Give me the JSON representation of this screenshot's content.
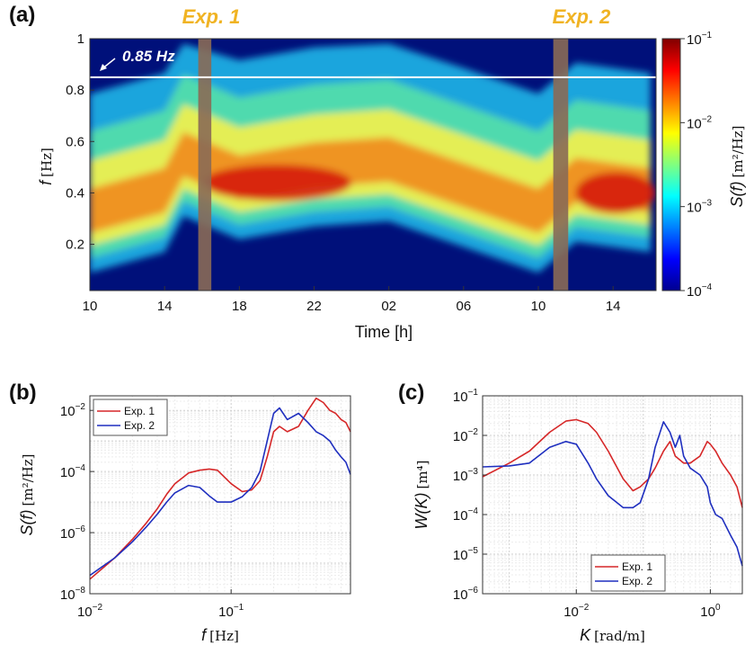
{
  "chart_data": [
    {
      "id": "a",
      "type": "heatmap",
      "panel_label": "(a)",
      "title": "",
      "xlabel": "Time [h]",
      "ylabel": "f [Hz]",
      "ylabel_var": "f",
      "ylabel_unit": "[Hz]",
      "xlim_hours": [
        10,
        40.3
      ],
      "ylim": [
        0.02,
        1.0
      ],
      "x_tick_hours": [
        10,
        14,
        18,
        22,
        26,
        30,
        34,
        38
      ],
      "x_tick_labels": [
        "10",
        "14",
        "18",
        "22",
        "02",
        "06",
        "10",
        "14"
      ],
      "y_ticks": [
        0.2,
        0.4,
        0.6,
        0.8,
        1.0
      ],
      "y_tick_labels": [
        "0.2",
        "0.4",
        "0.6",
        "0.8",
        "1"
      ],
      "colorbar": {
        "label": "S(f) [m²/Hz]",
        "label_var": "S(f)",
        "label_unit": "[m²/Hz]",
        "scale": "log",
        "range": [
          0.0001,
          0.1
        ],
        "tick_values": [
          0.1,
          0.01,
          0.001,
          0.0001
        ],
        "tick_base": [
          "10",
          "10",
          "10",
          "10"
        ],
        "tick_exp": [
          "−1",
          "−2",
          "−3",
          "−4"
        ]
      },
      "experiments": [
        {
          "label": "Exp. 1",
          "start_hour": 15.8,
          "end_hour": 16.5
        },
        {
          "label": "Exp. 2",
          "start_hour": 34.8,
          "end_hour": 35.6
        }
      ],
      "annotation": {
        "text": "0.85 Hz",
        "frequency": 0.85
      },
      "peak_frequency_track": [
        {
          "hour": 10,
          "f": 0.3
        },
        {
          "hour": 14,
          "f": 0.38
        },
        {
          "hour": 15,
          "f": 0.52
        },
        {
          "hour": 18,
          "f": 0.43
        },
        {
          "hour": 22,
          "f": 0.48
        },
        {
          "hour": 26,
          "f": 0.5
        },
        {
          "hour": 30,
          "f": 0.4
        },
        {
          "hour": 34,
          "f": 0.3
        },
        {
          "hour": 36,
          "f": 0.42
        },
        {
          "hour": 40,
          "f": 0.38
        }
      ]
    },
    {
      "id": "b",
      "type": "line",
      "panel_label": "(b)",
      "xlabel": "f [Hz]",
      "xlabel_var": "f",
      "xlabel_unit": "[Hz]",
      "ylabel": "S(f) [m²/Hz]",
      "ylabel_var": "S(f)",
      "ylabel_unit": "[m²/Hz]",
      "xscale": "log",
      "yscale": "log",
      "xlim": [
        0.01,
        0.7
      ],
      "ylim": [
        1e-08,
        0.03
      ],
      "x_ticks": [
        0.01,
        0.1
      ],
      "x_tick_base": [
        "10",
        "10"
      ],
      "x_tick_exp": [
        "−2",
        "−1"
      ],
      "y_ticks": [
        1e-08,
        1e-06,
        0.0001,
        0.01
      ],
      "y_tick_base": [
        "10",
        "10",
        "10",
        "10"
      ],
      "y_tick_exp": [
        "−8",
        "−6",
        "−4",
        "−2"
      ],
      "legend": {
        "position": "top-left",
        "entries": [
          "Exp. 1",
          "Exp. 2"
        ]
      },
      "series": [
        {
          "name": "Exp. 1",
          "color": "#d62728",
          "x": [
            0.01,
            0.015,
            0.02,
            0.025,
            0.03,
            0.035,
            0.04,
            0.05,
            0.06,
            0.07,
            0.08,
            0.1,
            0.12,
            0.14,
            0.16,
            0.18,
            0.2,
            0.22,
            0.25,
            0.3,
            0.35,
            0.4,
            0.45,
            0.5,
            0.55,
            0.6,
            0.65,
            0.7
          ],
          "y": [
            3e-08,
            1.5e-07,
            6e-07,
            2e-06,
            6e-06,
            1.8e-05,
            4e-05,
            9e-05,
            0.00011,
            0.00012,
            0.00011,
            4e-05,
            2.2e-05,
            2.5e-05,
            5e-05,
            0.0003,
            0.002,
            0.003,
            0.002,
            0.003,
            0.01,
            0.025,
            0.018,
            0.01,
            0.008,
            0.005,
            0.004,
            0.002
          ]
        },
        {
          "name": "Exp. 2",
          "color": "#1f2fbf",
          "x": [
            0.01,
            0.015,
            0.02,
            0.025,
            0.03,
            0.035,
            0.04,
            0.05,
            0.06,
            0.07,
            0.08,
            0.1,
            0.12,
            0.14,
            0.16,
            0.18,
            0.2,
            0.22,
            0.25,
            0.3,
            0.35,
            0.4,
            0.45,
            0.5,
            0.55,
            0.6,
            0.65,
            0.7
          ],
          "y": [
            4e-08,
            1.5e-07,
            5e-07,
            1.5e-06,
            4e-06,
            1e-05,
            2e-05,
            3.5e-05,
            3e-05,
            1.6e-05,
            1e-05,
            1e-05,
            1.5e-05,
            3e-05,
            0.0001,
            0.001,
            0.008,
            0.012,
            0.005,
            0.008,
            0.004,
            0.002,
            0.0015,
            0.001,
            0.0005,
            0.0003,
            0.0002,
            8e-05
          ]
        }
      ]
    },
    {
      "id": "c",
      "type": "line",
      "panel_label": "(c)",
      "xlabel": "K [rad/m]",
      "xlabel_var": "K",
      "xlabel_unit": "[rad/m]",
      "ylabel": "W(K) [m⁴]",
      "ylabel_var": "W(K)",
      "ylabel_unit": "[m⁴]",
      "xscale": "log",
      "yscale": "log",
      "xlim": [
        0.0004,
        3.0
      ],
      "ylim": [
        1e-06,
        0.1
      ],
      "x_ticks": [
        0.01,
        1.0
      ],
      "x_tick_base": [
        "10",
        "10"
      ],
      "x_tick_exp": [
        "−2",
        "0"
      ],
      "y_ticks": [
        1e-06,
        1e-05,
        0.0001,
        0.001,
        0.01,
        0.1
      ],
      "y_tick_base": [
        "10",
        "10",
        "10",
        "10",
        "10",
        "10"
      ],
      "y_tick_exp": [
        "−6",
        "−5",
        "−4",
        "−3",
        "−2",
        "−1"
      ],
      "legend": {
        "position": "bottom-right",
        "entries": [
          "Exp. 1",
          "Exp. 2"
        ]
      },
      "series": [
        {
          "name": "Exp. 1",
          "color": "#d62728",
          "x": [
            0.0004,
            0.001,
            0.002,
            0.004,
            0.007,
            0.01,
            0.015,
            0.02,
            0.03,
            0.05,
            0.07,
            0.09,
            0.12,
            0.15,
            0.2,
            0.25,
            0.3,
            0.4,
            0.5,
            0.7,
            0.9,
            1.0,
            1.2,
            1.5,
            2.0,
            2.5,
            3.0
          ],
          "y": [
            0.0009,
            0.002,
            0.004,
            0.012,
            0.023,
            0.025,
            0.02,
            0.012,
            0.004,
            0.0008,
            0.0004,
            0.0005,
            0.0008,
            0.0015,
            0.004,
            0.007,
            0.003,
            0.002,
            0.002,
            0.003,
            0.007,
            0.006,
            0.004,
            0.002,
            0.001,
            0.0005,
            0.00015
          ]
        },
        {
          "name": "Exp. 2",
          "color": "#1f2fbf",
          "x": [
            0.0004,
            0.001,
            0.002,
            0.004,
            0.007,
            0.01,
            0.015,
            0.02,
            0.03,
            0.05,
            0.07,
            0.09,
            0.12,
            0.15,
            0.2,
            0.25,
            0.3,
            0.35,
            0.4,
            0.5,
            0.7,
            0.9,
            1.0,
            1.2,
            1.5,
            2.0,
            2.5,
            3.0
          ],
          "y": [
            0.0016,
            0.0017,
            0.002,
            0.005,
            0.007,
            0.006,
            0.002,
            0.0008,
            0.0003,
            0.00015,
            0.00015,
            0.0002,
            0.0008,
            0.005,
            0.022,
            0.012,
            0.005,
            0.01,
            0.003,
            0.0015,
            0.001,
            0.0005,
            0.0002,
            0.0001,
            8e-05,
            3e-05,
            1.5e-05,
            5e-06
          ]
        }
      ]
    }
  ]
}
